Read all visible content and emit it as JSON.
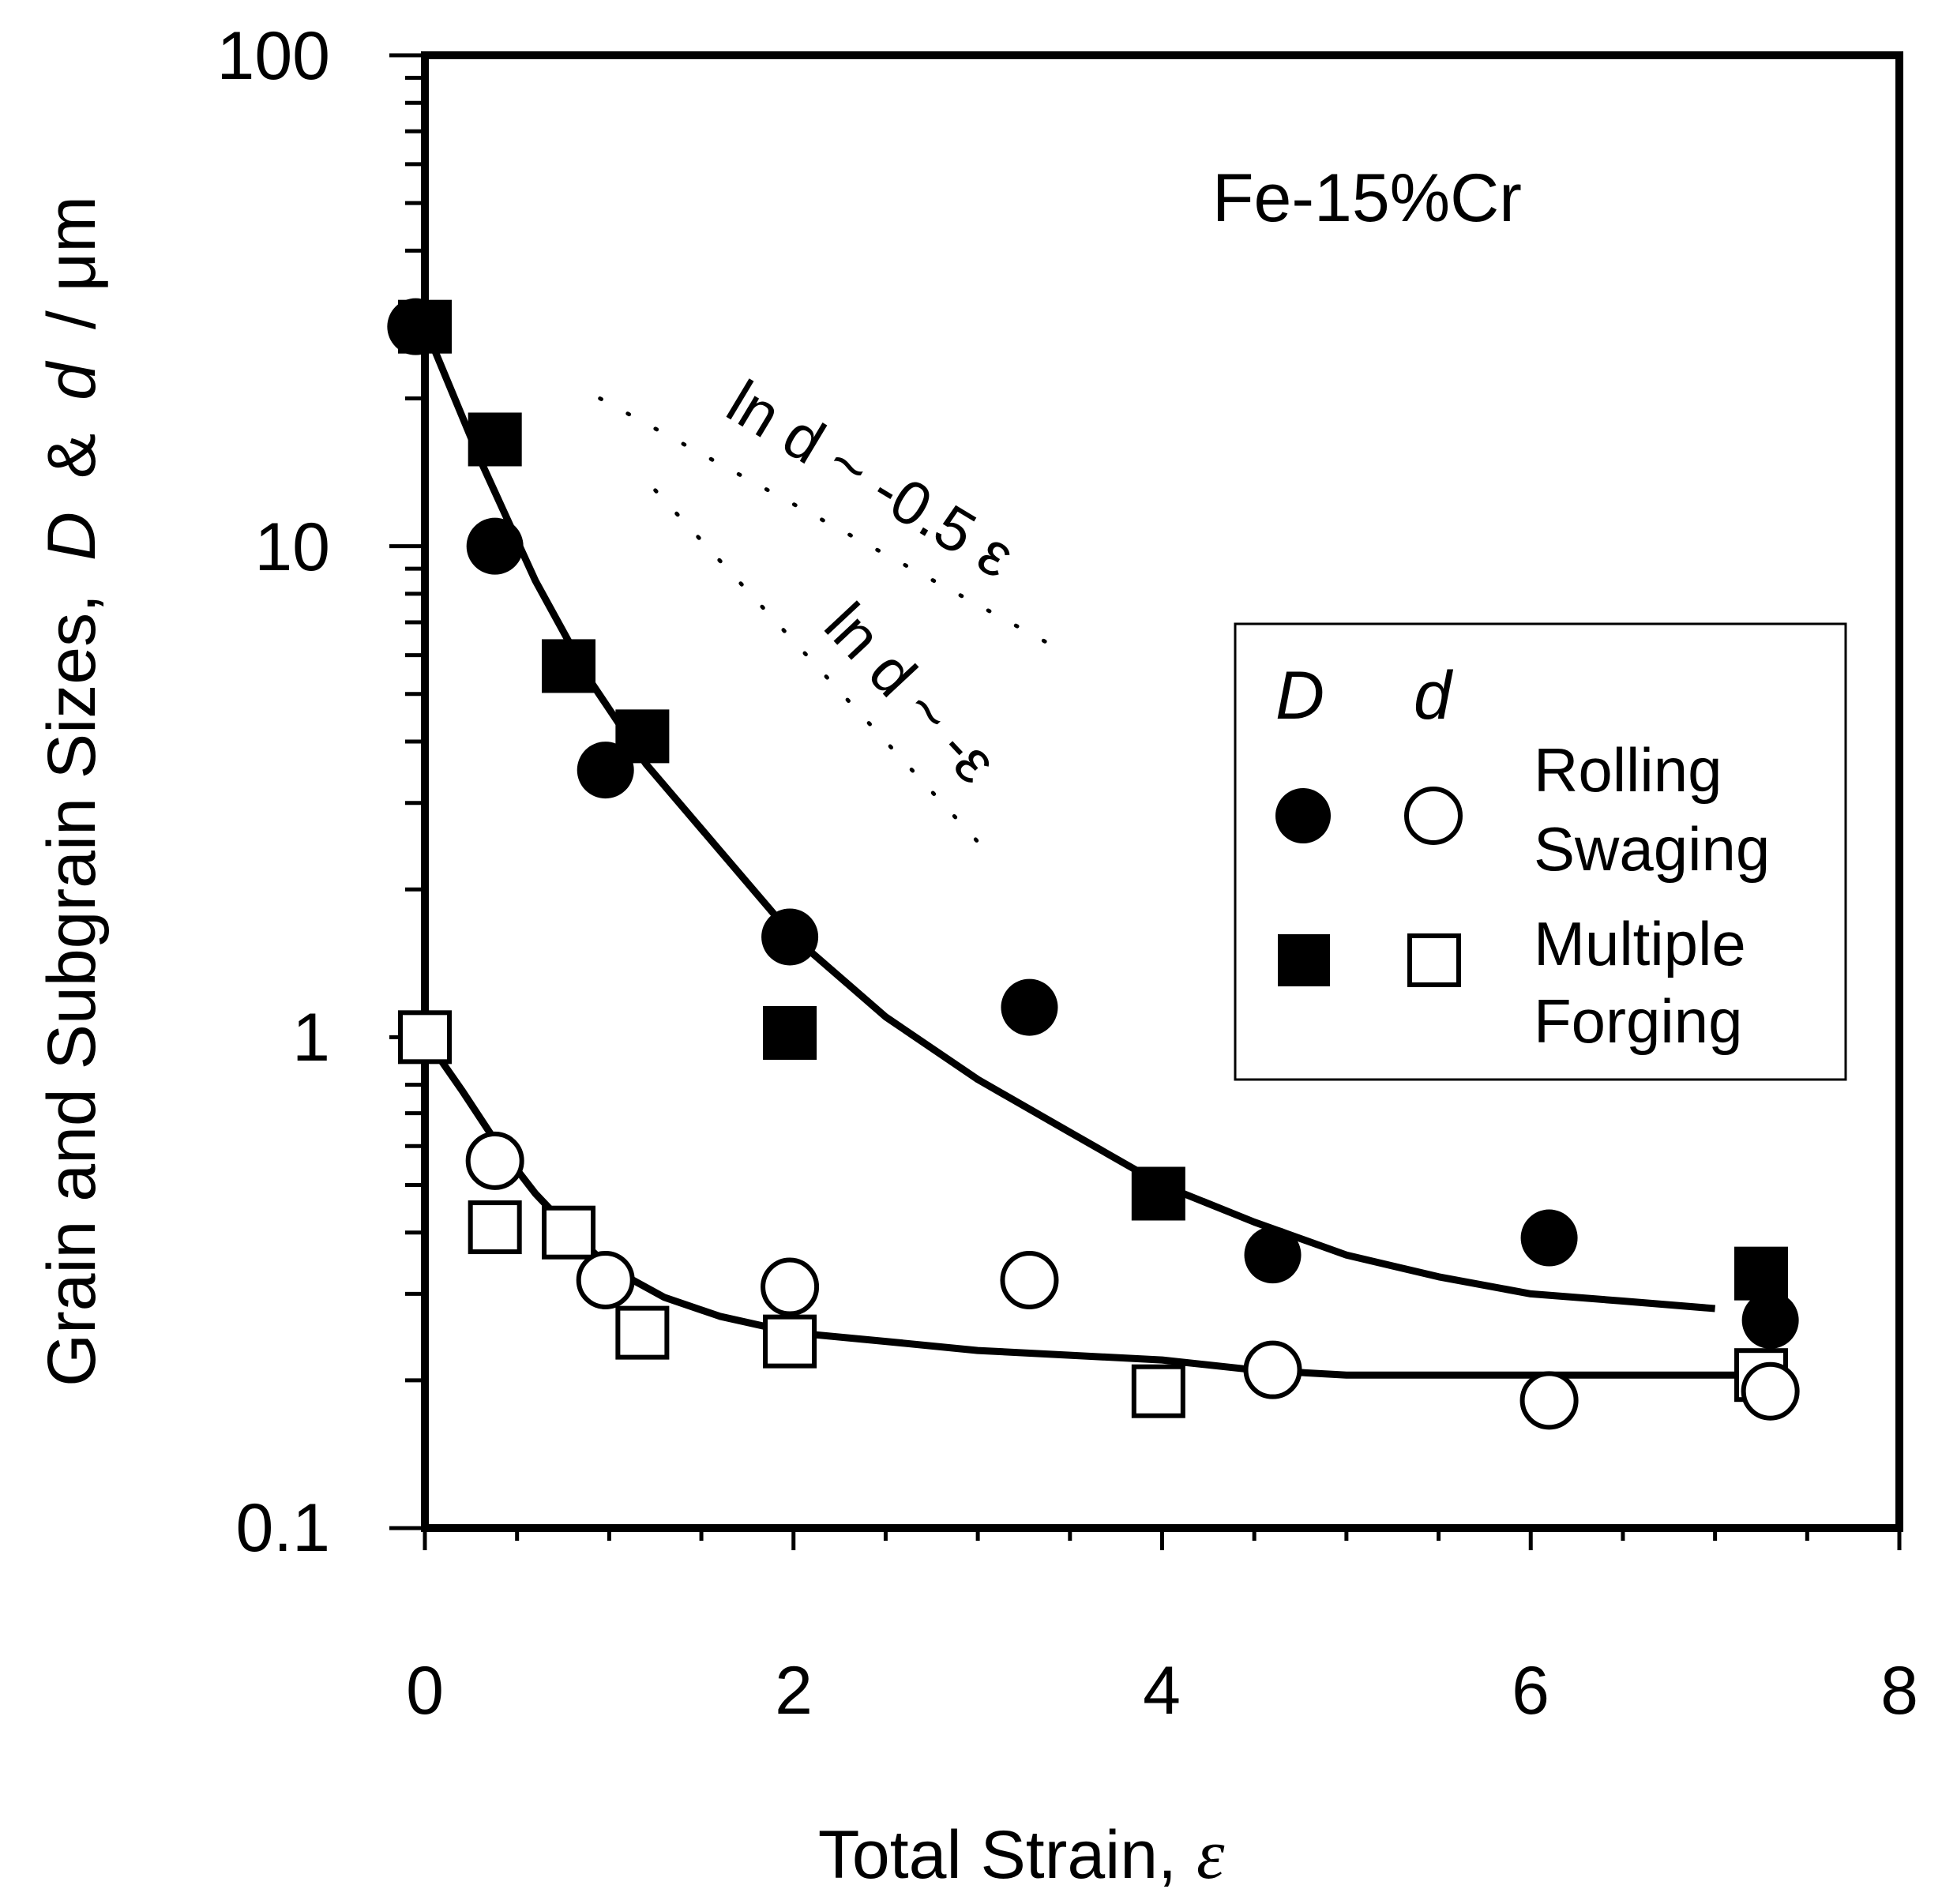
{
  "chart_data": {
    "type": "scatter",
    "title": "Fe-15%Cr",
    "xlabel_main": "Total Strain,",
    "xlabel_symbol": "ε",
    "ylabel_main": "Grain and Subgrain Sizes,",
    "ylabel_sym_D": "D",
    "ylabel_amp": "&",
    "ylabel_sym_d": "d",
    "ylabel_unit": "/ μm",
    "x_ticks": [
      "0",
      "2",
      "4",
      "6",
      "8"
    ],
    "y_ticks": [
      "0.1",
      "1",
      "10",
      "100"
    ],
    "xlim": [
      0,
      8
    ],
    "ylim": [
      0.1,
      100
    ],
    "yscale": "log",
    "legend": {
      "placement": "right-middle",
      "header_D": "D",
      "header_d": "d",
      "rolling_label_1": "Rolling",
      "rolling_label_2": "Swaging",
      "forging_label_1": "Multiple",
      "forging_label_2": "Forging"
    },
    "annotations": {
      "slope1_text": "ln d ~ -0.5 ε",
      "slope2_text": "ln d ~ -ε",
      "slope1_line": {
        "x": [
          0.95,
          3.5
        ],
        "y": [
          20,
          6
        ]
      },
      "slope2_line": {
        "x": [
          1.25,
          3.0
        ],
        "y": [
          13,
          2.5
        ]
      }
    },
    "series": [
      {
        "name": "D Rolling/Swaging",
        "marker": "filled-circle",
        "points": [
          [
            -0.05,
            28
          ],
          [
            0.38,
            10
          ],
          [
            0.98,
            3.5
          ],
          [
            1.98,
            1.6
          ],
          [
            3.28,
            1.15
          ],
          [
            4.6,
            0.36
          ],
          [
            6.1,
            0.39
          ],
          [
            7.3,
            0.265
          ]
        ]
      },
      {
        "name": "D Multiple Forging",
        "marker": "filled-square",
        "points": [
          [
            0.0,
            28
          ],
          [
            0.38,
            16.5
          ],
          [
            0.78,
            5.7
          ],
          [
            1.18,
            4.1
          ],
          [
            1.98,
            1.02
          ],
          [
            3.98,
            0.48
          ],
          [
            7.25,
            0.33
          ]
        ]
      },
      {
        "name": "d Rolling/Swaging",
        "marker": "open-circle",
        "points": [
          [
            0.38,
            0.56
          ],
          [
            0.98,
            0.32
          ],
          [
            1.98,
            0.31
          ],
          [
            3.28,
            0.32
          ],
          [
            4.6,
            0.21
          ],
          [
            6.1,
            0.182
          ],
          [
            7.3,
            0.19
          ]
        ]
      },
      {
        "name": "d Multiple Forging",
        "marker": "open-square",
        "points": [
          [
            0.0,
            1.0
          ],
          [
            0.38,
            0.41
          ],
          [
            0.78,
            0.4
          ],
          [
            1.18,
            0.25
          ],
          [
            1.98,
            0.24
          ],
          [
            3.98,
            0.19
          ],
          [
            7.25,
            0.205
          ]
        ]
      },
      {
        "name": "D fit",
        "marker": "line",
        "points": [
          [
            0,
            28
          ],
          [
            0.3,
            15
          ],
          [
            0.6,
            8.5
          ],
          [
            0.9,
            5.3
          ],
          [
            1.2,
            3.6
          ],
          [
            1.6,
            2.4
          ],
          [
            2.0,
            1.6
          ],
          [
            2.5,
            1.1
          ],
          [
            3.0,
            0.82
          ],
          [
            3.5,
            0.64
          ],
          [
            4.0,
            0.5
          ],
          [
            4.5,
            0.42
          ],
          [
            5.0,
            0.36
          ],
          [
            5.5,
            0.325
          ],
          [
            6.0,
            0.3
          ],
          [
            6.5,
            0.29
          ],
          [
            7.0,
            0.28
          ]
        ]
      },
      {
        "name": "d fit",
        "marker": "line",
        "points": [
          [
            0,
            1.0
          ],
          [
            0.2,
            0.78
          ],
          [
            0.4,
            0.6
          ],
          [
            0.6,
            0.48
          ],
          [
            0.8,
            0.4
          ],
          [
            1.0,
            0.34
          ],
          [
            1.3,
            0.295
          ],
          [
            1.6,
            0.27
          ],
          [
            2.0,
            0.25
          ],
          [
            2.5,
            0.24
          ],
          [
            3.0,
            0.23
          ],
          [
            3.5,
            0.225
          ],
          [
            4.0,
            0.22
          ],
          [
            4.5,
            0.21
          ],
          [
            5.0,
            0.205
          ],
          [
            6.0,
            0.205
          ],
          [
            7.3,
            0.205
          ]
        ]
      }
    ]
  }
}
